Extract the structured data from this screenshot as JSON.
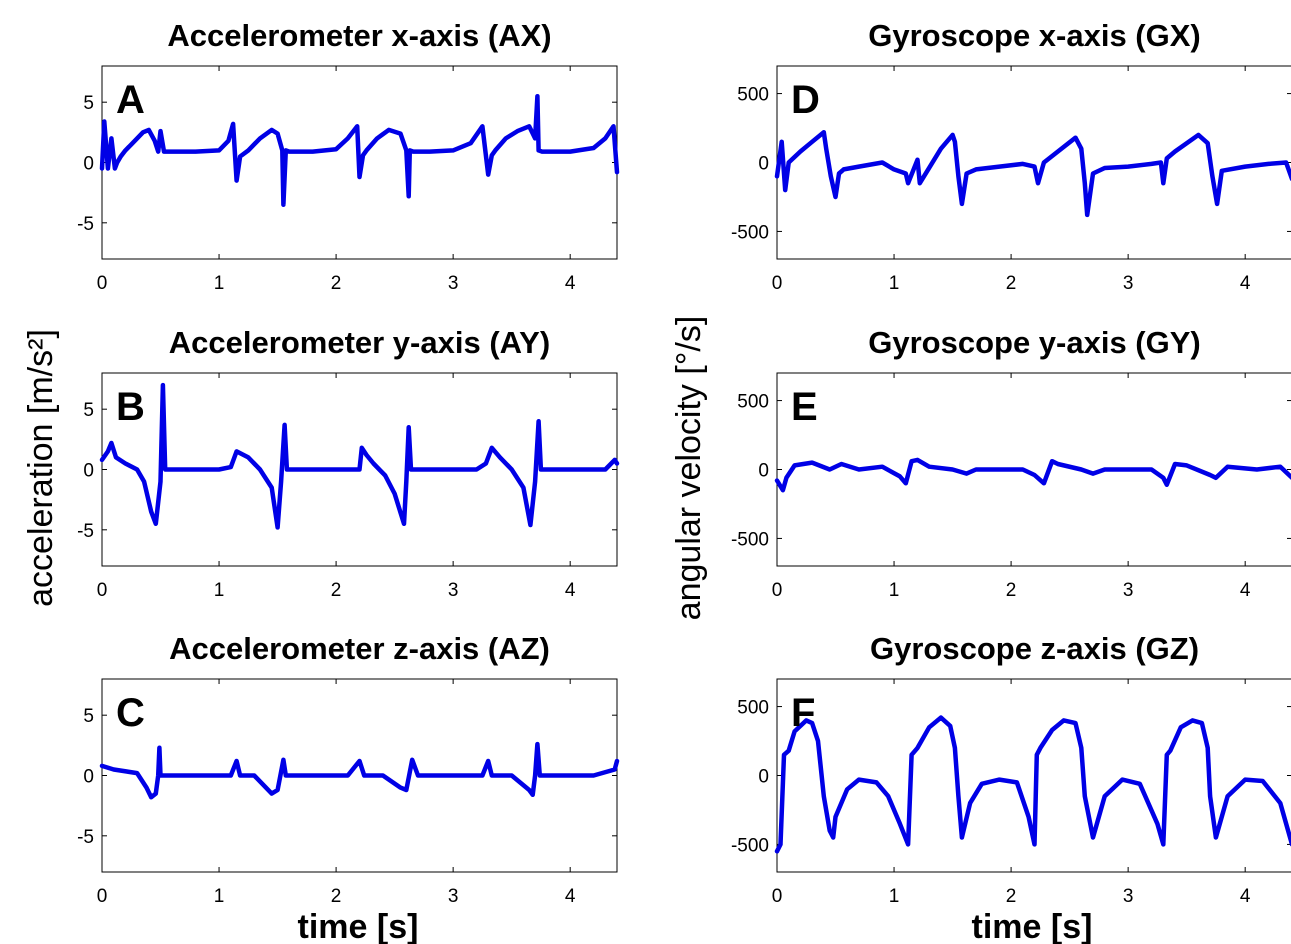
{
  "figure": {
    "shared_ylabel_left": "acceleration [m/s²]",
    "shared_ylabel_right": "angular velocity [°/s]",
    "shared_xlabel": "time [s]",
    "line_color": "#0000e6"
  },
  "chart_data": [
    {
      "id": "AX",
      "letter": "A",
      "type": "line",
      "title": "Accelerometer x-axis (AX)",
      "xlim": [
        0,
        4.4
      ],
      "ylim": [
        -8,
        8
      ],
      "xticks": [
        0,
        1,
        2,
        3,
        4
      ],
      "yticks": [
        5,
        0,
        -5
      ],
      "xticklabels": [
        "0",
        "1",
        "2",
        "3",
        "4"
      ],
      "yticklabels": [
        "5",
        "0",
        "-5"
      ],
      "x": [
        0,
        0.02,
        0.05,
        0.08,
        0.11,
        0.13,
        0.16,
        0.2,
        0.25,
        0.3,
        0.35,
        0.4,
        0.45,
        0.48,
        0.5,
        0.53,
        0.6,
        0.8,
        1.0,
        1.08,
        1.12,
        1.15,
        1.18,
        1.25,
        1.35,
        1.45,
        1.5,
        1.54,
        1.55,
        1.57,
        1.6,
        1.8,
        2.0,
        2.1,
        2.18,
        2.2,
        2.23,
        2.26,
        2.35,
        2.45,
        2.55,
        2.6,
        2.62,
        2.63,
        2.66,
        2.8,
        3.0,
        3.15,
        3.25,
        3.3,
        3.33,
        3.36,
        3.45,
        3.55,
        3.65,
        3.7,
        3.72,
        3.73,
        3.76,
        3.8,
        4.0,
        4.2,
        4.3,
        4.37,
        4.4
      ],
      "y": [
        -0.5,
        3.4,
        -0.5,
        2.0,
        -0.5,
        0.0,
        0.5,
        1.0,
        1.5,
        2.0,
        2.5,
        2.7,
        1.8,
        0.9,
        2.6,
        0.9,
        0.9,
        0.9,
        1.0,
        1.8,
        3.2,
        -1.5,
        0.5,
        1.0,
        2.0,
        2.7,
        2.4,
        1.0,
        -3.5,
        1.0,
        0.9,
        0.9,
        1.1,
        2.0,
        3.0,
        -1.2,
        0.6,
        1.0,
        2.0,
        2.7,
        2.4,
        1.0,
        -2.8,
        1.0,
        0.9,
        0.9,
        1.0,
        1.6,
        3.0,
        -1.0,
        0.6,
        1.0,
        2.0,
        2.6,
        3.0,
        2.0,
        5.5,
        1.0,
        0.9,
        0.9,
        0.9,
        1.2,
        2.0,
        3.0,
        -0.8
      ]
    },
    {
      "id": "AY",
      "letter": "B",
      "type": "line",
      "title": "Accelerometer y-axis (AY)",
      "xlim": [
        0,
        4.4
      ],
      "ylim": [
        -8,
        8
      ],
      "xticks": [
        0,
        1,
        2,
        3,
        4
      ],
      "yticks": [
        5,
        0,
        -5
      ],
      "xticklabels": [
        "0",
        "1",
        "2",
        "3",
        "4"
      ],
      "yticklabels": [
        "5",
        "0",
        "-5"
      ],
      "x": [
        0,
        0.05,
        0.08,
        0.12,
        0.2,
        0.3,
        0.36,
        0.42,
        0.46,
        0.5,
        0.52,
        0.54,
        0.58,
        0.8,
        1.0,
        1.1,
        1.15,
        1.25,
        1.35,
        1.45,
        1.5,
        1.53,
        1.56,
        1.58,
        1.62,
        1.8,
        2.0,
        2.2,
        2.22,
        2.26,
        2.32,
        2.42,
        2.5,
        2.58,
        2.6,
        2.62,
        2.64,
        2.68,
        2.8,
        3.0,
        3.2,
        3.28,
        3.33,
        3.4,
        3.5,
        3.6,
        3.66,
        3.7,
        3.73,
        3.75,
        3.78,
        3.9,
        4.1,
        4.3,
        4.38,
        4.4
      ],
      "y": [
        0.8,
        1.5,
        2.2,
        1.0,
        0.5,
        0.0,
        -1.0,
        -3.5,
        -4.5,
        -1.0,
        7.0,
        0.0,
        0.0,
        0.0,
        0.0,
        0.2,
        1.5,
        1.0,
        0.0,
        -1.5,
        -4.8,
        -1.0,
        3.7,
        0.0,
        0.0,
        0.0,
        0.0,
        0.0,
        1.8,
        1.2,
        0.5,
        -0.5,
        -2.0,
        -4.5,
        -1.0,
        3.5,
        0.0,
        0.0,
        0.0,
        0.0,
        0.0,
        0.5,
        1.8,
        1.0,
        0.0,
        -1.5,
        -4.6,
        -1.0,
        4.0,
        0.0,
        0.0,
        0.0,
        0.0,
        0.0,
        0.8,
        0.5
      ]
    },
    {
      "id": "AZ",
      "letter": "C",
      "type": "line",
      "title": "Accelerometer z-axis (AZ)",
      "xlim": [
        0,
        4.4
      ],
      "ylim": [
        -8,
        8
      ],
      "xticks": [
        0,
        1,
        2,
        3,
        4
      ],
      "yticks": [
        5,
        0,
        -5
      ],
      "xticklabels": [
        "0",
        "1",
        "2",
        "3",
        "4"
      ],
      "yticklabels": [
        "5",
        "0",
        "-5"
      ],
      "x": [
        0,
        0.1,
        0.3,
        0.38,
        0.42,
        0.46,
        0.48,
        0.49,
        0.5,
        0.55,
        0.8,
        1.1,
        1.15,
        1.18,
        1.3,
        1.45,
        1.5,
        1.55,
        1.57,
        1.6,
        1.8,
        2.1,
        2.2,
        2.24,
        2.4,
        2.55,
        2.6,
        2.65,
        2.7,
        3.0,
        3.25,
        3.3,
        3.33,
        3.5,
        3.65,
        3.68,
        3.7,
        3.72,
        3.74,
        3.8,
        4.2,
        4.38,
        4.4
      ],
      "y": [
        0.8,
        0.5,
        0.2,
        -1.0,
        -1.8,
        -1.5,
        0.0,
        2.3,
        0.0,
        0.0,
        0.0,
        0.0,
        1.2,
        0.0,
        0.0,
        -1.5,
        -1.2,
        1.3,
        0.0,
        0.0,
        0.0,
        0.0,
        1.2,
        0.0,
        0.0,
        -1.0,
        -1.2,
        1.3,
        0.0,
        0.0,
        0.0,
        1.2,
        0.0,
        0.0,
        -1.2,
        -1.6,
        0.0,
        2.6,
        0.0,
        0.0,
        0.0,
        0.5,
        1.2
      ]
    },
    {
      "id": "GX",
      "letter": "D",
      "type": "line",
      "title": "Gyroscope x-axis (GX)",
      "xlim": [
        0,
        4.4
      ],
      "ylim": [
        -700,
        700
      ],
      "xticks": [
        0,
        1,
        2,
        3,
        4
      ],
      "yticks": [
        500,
        0,
        -500
      ],
      "xticklabels": [
        "0",
        "1",
        "2",
        "3",
        "4"
      ],
      "yticklabels": [
        "500",
        "0",
        "-500"
      ],
      "x": [
        0,
        0.04,
        0.07,
        0.1,
        0.2,
        0.3,
        0.4,
        0.42,
        0.46,
        0.5,
        0.53,
        0.57,
        0.7,
        0.9,
        1.0,
        1.1,
        1.12,
        1.2,
        1.22,
        1.4,
        1.5,
        1.52,
        1.55,
        1.58,
        1.62,
        1.7,
        1.9,
        2.1,
        2.2,
        2.23,
        2.28,
        2.4,
        2.55,
        2.6,
        2.63,
        2.65,
        2.7,
        2.8,
        3.0,
        3.2,
        3.28,
        3.3,
        3.33,
        3.4,
        3.6,
        3.68,
        3.72,
        3.76,
        3.8,
        4.0,
        4.2,
        4.35,
        4.4
      ],
      "y": [
        -100,
        150,
        -200,
        0,
        80,
        150,
        220,
        100,
        -100,
        -250,
        -80,
        -50,
        -30,
        0,
        -50,
        -80,
        -150,
        20,
        -150,
        100,
        200,
        150,
        -100,
        -300,
        -80,
        -50,
        -30,
        -10,
        -30,
        -150,
        0,
        80,
        180,
        100,
        -150,
        -380,
        -80,
        -40,
        -30,
        -10,
        0,
        -150,
        30,
        80,
        200,
        140,
        -100,
        -300,
        -60,
        -30,
        -10,
        0,
        -120
      ]
    },
    {
      "id": "GY",
      "letter": "E",
      "type": "line",
      "title": "Gyroscope y-axis (GY)",
      "xlim": [
        0,
        4.4
      ],
      "ylim": [
        -700,
        700
      ],
      "xticks": [
        0,
        1,
        2,
        3,
        4
      ],
      "yticks": [
        500,
        0,
        -500
      ],
      "xticklabels": [
        "0",
        "1",
        "2",
        "3",
        "4"
      ],
      "yticklabels": [
        "500",
        "0",
        "-500"
      ],
      "x": [
        0,
        0.05,
        0.08,
        0.15,
        0.3,
        0.45,
        0.55,
        0.7,
        0.9,
        1.05,
        1.1,
        1.15,
        1.2,
        1.3,
        1.5,
        1.62,
        1.7,
        1.9,
        2.1,
        2.2,
        2.28,
        2.35,
        2.4,
        2.6,
        2.7,
        2.8,
        3.0,
        3.2,
        3.3,
        3.33,
        3.4,
        3.5,
        3.7,
        3.75,
        3.85,
        4.1,
        4.3,
        4.4
      ],
      "y": [
        -80,
        -150,
        -60,
        30,
        50,
        0,
        40,
        0,
        20,
        -50,
        -100,
        60,
        70,
        20,
        0,
        -30,
        0,
        0,
        0,
        -40,
        -100,
        60,
        40,
        0,
        -30,
        0,
        0,
        0,
        -60,
        -110,
        40,
        30,
        -40,
        -60,
        20,
        0,
        20,
        -60
      ]
    },
    {
      "id": "GZ",
      "letter": "F",
      "type": "line",
      "title": "Gyroscope z-axis (GZ)",
      "xlim": [
        0,
        4.4
      ],
      "ylim": [
        -700,
        700
      ],
      "xticks": [
        0,
        1,
        2,
        3,
        4
      ],
      "yticks": [
        500,
        0,
        -500
      ],
      "xticklabels": [
        "0",
        "1",
        "2",
        "3",
        "4"
      ],
      "yticklabels": [
        "500",
        "0",
        "-500"
      ],
      "x": [
        0,
        0.03,
        0.06,
        0.1,
        0.15,
        0.25,
        0.3,
        0.35,
        0.4,
        0.45,
        0.48,
        0.5,
        0.6,
        0.7,
        0.85,
        0.95,
        1.05,
        1.12,
        1.15,
        1.2,
        1.3,
        1.4,
        1.48,
        1.52,
        1.55,
        1.58,
        1.65,
        1.75,
        1.9,
        2.05,
        2.15,
        2.2,
        2.22,
        2.25,
        2.35,
        2.45,
        2.55,
        2.6,
        2.63,
        2.7,
        2.8,
        2.95,
        3.1,
        3.25,
        3.3,
        3.33,
        3.36,
        3.45,
        3.55,
        3.63,
        3.68,
        3.7,
        3.75,
        3.85,
        4.0,
        4.15,
        4.3,
        4.4
      ],
      "y": [
        -550,
        -500,
        150,
        180,
        320,
        400,
        380,
        250,
        -150,
        -400,
        -450,
        -300,
        -100,
        -30,
        -50,
        -150,
        -350,
        -500,
        150,
        200,
        350,
        420,
        360,
        200,
        -150,
        -450,
        -200,
        -60,
        -30,
        -50,
        -300,
        -500,
        150,
        200,
        330,
        400,
        380,
        200,
        -150,
        -450,
        -150,
        -30,
        -60,
        -350,
        -500,
        150,
        180,
        350,
        400,
        380,
        200,
        -150,
        -450,
        -150,
        -30,
        -40,
        -200,
        -500
      ]
    }
  ]
}
